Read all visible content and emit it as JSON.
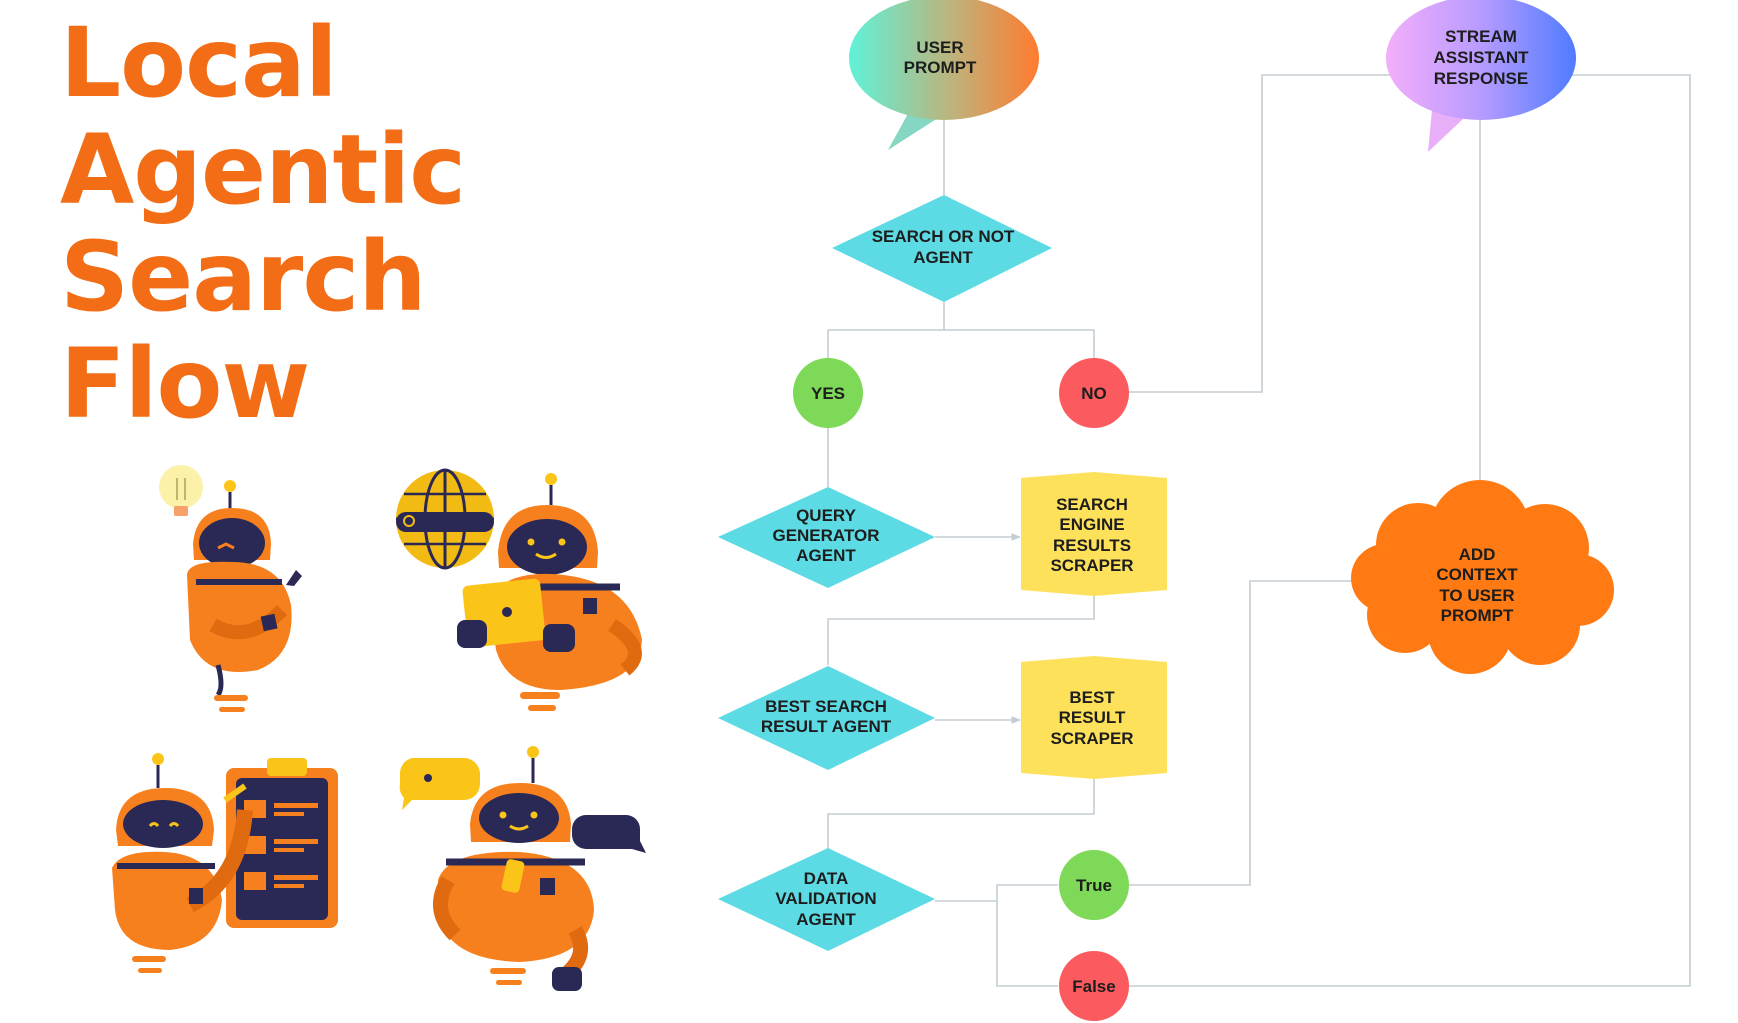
{
  "title": {
    "line1": "Local",
    "line2": "Agentic",
    "line3": "Search",
    "line4": "Flow"
  },
  "colors": {
    "title": "#f26d16",
    "decision": "#5ddbe4",
    "process": "#fde15b",
    "yes_true": "#7dd957",
    "no_false": "#fb5b5f",
    "context_cloud": "#ff7a12",
    "connector": "#c3cdd3",
    "robot_body": "#f7801e",
    "robot_face": "#2a2855"
  },
  "nodes": {
    "user_prompt": {
      "line1": "USER",
      "line2": "PROMPT"
    },
    "stream_response": {
      "line1": "STREAM",
      "line2": "ASSISTANT",
      "line3": "RESPONSE"
    },
    "search_or_not": {
      "line1": "SEARCH OR NOT",
      "line2": "AGENT"
    },
    "yes": {
      "label": "YES"
    },
    "no": {
      "label": "NO"
    },
    "query_generator": {
      "line1": "QUERY",
      "line2": "GENERATOR",
      "line3": "AGENT"
    },
    "search_scraper": {
      "line1": "SEARCH",
      "line2": "ENGINE",
      "line3": "RESULTS",
      "line4": "SCRAPER"
    },
    "best_result_agent": {
      "line1": "BEST SEARCH",
      "line2": "RESULT AGENT"
    },
    "best_result_scraper": {
      "line1": "BEST",
      "line2": "RESULT",
      "line3": "SCRAPER"
    },
    "data_validation": {
      "line1": "DATA",
      "line2": "VALIDATION",
      "line3": "AGENT"
    },
    "true_node": {
      "label": "True"
    },
    "false_node": {
      "label": "False"
    },
    "add_context": {
      "line1": "ADD",
      "line2": "CONTEXT",
      "line3": "TO USER",
      "line4": "PROMPT"
    }
  },
  "icons": {
    "robot_1": "robot-thinking-lightbulb-icon",
    "robot_2": "robot-laptop-globe-icon",
    "robot_3": "robot-clipboard-icon",
    "robot_4": "robot-chat-bubbles-icon"
  }
}
